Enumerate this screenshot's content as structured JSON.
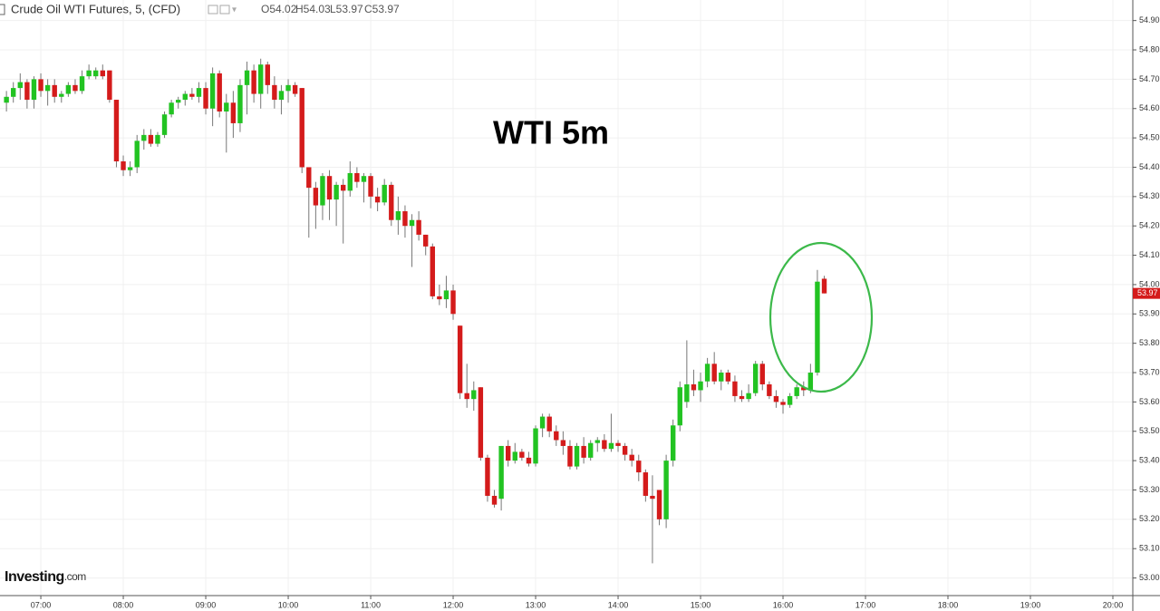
{
  "chart_data": {
    "type": "candlestick",
    "symbol": "Crude Oil WTI Futures, 5, (CFD)",
    "ohlc_legend": [
      "O54.02",
      "H54.03",
      "L53.97",
      "C53.97"
    ],
    "title": "WTI 5m",
    "logo": [
      "Investing",
      ".com"
    ],
    "up_color": "#22c322",
    "down_color": "#d41b1b",
    "grid": true,
    "last_price": 53.97,
    "xlim": [
      390.3,
      1214.5
    ],
    "ylim": [
      52.94,
      54.97
    ],
    "xticks": [
      {
        "value": 420,
        "label": "07:00"
      },
      {
        "value": 480,
        "label": "08:00"
      },
      {
        "value": 540,
        "label": "09:00"
      },
      {
        "value": 600,
        "label": "10:00"
      },
      {
        "value": 660,
        "label": "11:00"
      },
      {
        "value": 720,
        "label": "12:00"
      },
      {
        "value": 780,
        "label": "13:00"
      },
      {
        "value": 840,
        "label": "14:00"
      },
      {
        "value": 900,
        "label": "15:00"
      },
      {
        "value": 960,
        "label": "16:00"
      },
      {
        "value": 1020,
        "label": "17:00"
      },
      {
        "value": 1080,
        "label": "18:00"
      },
      {
        "value": 1140,
        "label": "19:00"
      },
      {
        "value": 1200,
        "label": "20:00"
      }
    ],
    "yticks": [
      {
        "value": 53.0,
        "label": "53.00"
      },
      {
        "value": 53.1,
        "label": "53.10"
      },
      {
        "value": 53.2,
        "label": "53.20"
      },
      {
        "value": 53.3,
        "label": "53.30"
      },
      {
        "value": 53.4,
        "label": "53.40"
      },
      {
        "value": 53.5,
        "label": "53.50"
      },
      {
        "value": 53.6,
        "label": "53.60"
      },
      {
        "value": 53.7,
        "label": "53.70"
      },
      {
        "value": 53.8,
        "label": "53.80"
      },
      {
        "value": 53.9,
        "label": "53.90"
      },
      {
        "value": 54.0,
        "label": "54.00"
      },
      {
        "value": 54.1,
        "label": "54.10"
      },
      {
        "value": 54.2,
        "label": "54.20"
      },
      {
        "value": 54.3,
        "label": "54.30"
      },
      {
        "value": 54.4,
        "label": "54.40"
      },
      {
        "value": 54.5,
        "label": "54.50"
      },
      {
        "value": 54.6,
        "label": "54.60"
      },
      {
        "value": 54.7,
        "label": "54.70"
      },
      {
        "value": 54.8,
        "label": "54.80"
      },
      {
        "value": 54.9,
        "label": "54.90"
      }
    ],
    "x": [
      395,
      400,
      405,
      410,
      415,
      420,
      425,
      430,
      435,
      440,
      445,
      450,
      455,
      460,
      465,
      470,
      475,
      480,
      485,
      490,
      495,
      500,
      505,
      510,
      515,
      520,
      525,
      530,
      535,
      540,
      545,
      550,
      555,
      560,
      565,
      570,
      575,
      580,
      585,
      590,
      595,
      600,
      605,
      610,
      615,
      620,
      625,
      630,
      635,
      640,
      645,
      650,
      655,
      660,
      665,
      670,
      675,
      680,
      685,
      690,
      695,
      700,
      705,
      710,
      715,
      720,
      725,
      730,
      735,
      740,
      745,
      750,
      755,
      760,
      765,
      770,
      775,
      780,
      785,
      790,
      795,
      800,
      805,
      810,
      815,
      820,
      825,
      830,
      835,
      840,
      845,
      850,
      855,
      860,
      865,
      870,
      875,
      880,
      885,
      890,
      895,
      900,
      905,
      910,
      915,
      920,
      925,
      930,
      935,
      940,
      945,
      950,
      955,
      960,
      965,
      970,
      975,
      980,
      985,
      990
    ],
    "ohlc": [
      [
        54.62,
        54.66,
        54.59,
        54.64
      ],
      [
        54.64,
        54.69,
        54.62,
        54.67
      ],
      [
        54.67,
        54.72,
        54.63,
        54.69
      ],
      [
        54.69,
        54.7,
        54.6,
        54.63
      ],
      [
        54.63,
        54.71,
        54.6,
        54.7
      ],
      [
        54.7,
        54.72,
        54.64,
        54.66
      ],
      [
        54.66,
        54.7,
        54.61,
        54.68
      ],
      [
        54.68,
        54.7,
        54.62,
        54.64
      ],
      [
        54.64,
        54.66,
        54.62,
        54.65
      ],
      [
        54.65,
        54.69,
        54.64,
        54.68
      ],
      [
        54.68,
        54.7,
        54.65,
        54.66
      ],
      [
        54.66,
        54.73,
        54.65,
        54.71
      ],
      [
        54.71,
        54.75,
        54.7,
        54.73
      ],
      [
        54.71,
        54.74,
        54.7,
        54.73
      ],
      [
        54.73,
        54.75,
        54.7,
        54.71
      ],
      [
        54.73,
        54.73,
        54.62,
        54.63
      ],
      [
        54.63,
        54.63,
        54.4,
        54.42
      ],
      [
        54.42,
        54.44,
        54.37,
        54.39
      ],
      [
        54.39,
        54.42,
        54.37,
        54.4
      ],
      [
        54.4,
        54.51,
        54.38,
        54.49
      ],
      [
        54.49,
        54.53,
        54.46,
        54.51
      ],
      [
        54.51,
        54.53,
        54.47,
        54.48
      ],
      [
        54.48,
        54.52,
        54.47,
        54.51
      ],
      [
        54.51,
        54.59,
        54.5,
        54.58
      ],
      [
        54.58,
        54.63,
        54.57,
        54.62
      ],
      [
        54.62,
        54.64,
        54.6,
        54.63
      ],
      [
        54.63,
        54.66,
        54.61,
        54.65
      ],
      [
        54.65,
        54.67,
        54.63,
        54.64
      ],
      [
        54.64,
        54.69,
        54.62,
        54.67
      ],
      [
        54.67,
        54.69,
        54.58,
        54.6
      ],
      [
        54.6,
        54.74,
        54.54,
        54.72
      ],
      [
        54.72,
        54.73,
        54.57,
        54.59
      ],
      [
        54.59,
        54.65,
        54.45,
        54.62
      ],
      [
        54.62,
        54.66,
        54.5,
        54.55
      ],
      [
        54.55,
        54.7,
        54.52,
        54.68
      ],
      [
        54.68,
        54.76,
        54.58,
        54.73
      ],
      [
        54.73,
        54.75,
        54.62,
        54.65
      ],
      [
        54.65,
        54.77,
        54.6,
        54.75
      ],
      [
        54.75,
        54.76,
        54.65,
        54.68
      ],
      [
        54.68,
        54.71,
        54.6,
        54.63
      ],
      [
        54.63,
        54.68,
        54.58,
        54.66
      ],
      [
        54.66,
        54.7,
        54.62,
        54.68
      ],
      [
        54.68,
        54.69,
        54.64,
        54.65
      ],
      [
        54.67,
        54.67,
        54.38,
        54.4
      ],
      [
        54.4,
        54.4,
        54.16,
        54.33
      ],
      [
        54.33,
        54.35,
        54.19,
        54.27
      ],
      [
        54.27,
        54.38,
        54.22,
        54.37
      ],
      [
        54.37,
        54.39,
        54.22,
        54.29
      ],
      [
        54.29,
        54.35,
        54.2,
        54.34
      ],
      [
        54.34,
        54.36,
        54.14,
        54.32
      ],
      [
        54.32,
        54.42,
        54.3,
        54.38
      ],
      [
        54.38,
        54.4,
        54.33,
        54.35
      ],
      [
        54.35,
        54.38,
        54.28,
        54.37
      ],
      [
        54.37,
        54.38,
        54.26,
        54.3
      ],
      [
        54.3,
        54.33,
        54.25,
        54.28
      ],
      [
        54.28,
        54.36,
        54.27,
        54.34
      ],
      [
        54.34,
        54.35,
        54.2,
        54.22
      ],
      [
        54.22,
        54.3,
        54.17,
        54.25
      ],
      [
        54.25,
        54.27,
        54.16,
        54.2
      ],
      [
        54.2,
        54.24,
        54.06,
        54.22
      ],
      [
        54.22,
        54.25,
        54.15,
        54.17
      ],
      [
        54.17,
        54.17,
        54.1,
        54.13
      ],
      [
        54.13,
        54.14,
        53.95,
        53.96
      ],
      [
        53.96,
        54.0,
        53.93,
        53.95
      ],
      [
        53.95,
        54.03,
        53.92,
        53.98
      ],
      [
        53.98,
        54.0,
        53.88,
        53.9
      ],
      [
        53.86,
        53.86,
        53.61,
        53.63
      ],
      [
        53.63,
        53.73,
        53.58,
        53.61
      ],
      [
        53.61,
        53.67,
        53.57,
        53.64
      ],
      [
        53.65,
        53.65,
        53.4,
        53.41
      ],
      [
        53.41,
        53.42,
        53.26,
        53.28
      ],
      [
        53.28,
        53.3,
        53.24,
        53.25
      ],
      [
        53.27,
        53.45,
        53.23,
        53.45
      ],
      [
        53.45,
        53.47,
        53.38,
        53.4
      ],
      [
        53.4,
        53.46,
        53.39,
        53.43
      ],
      [
        53.43,
        53.44,
        53.4,
        53.41
      ],
      [
        53.41,
        53.43,
        53.38,
        53.39
      ],
      [
        53.39,
        53.52,
        53.38,
        53.51
      ],
      [
        53.51,
        53.56,
        53.48,
        53.55
      ],
      [
        53.55,
        53.56,
        53.48,
        53.5
      ],
      [
        53.5,
        53.52,
        53.45,
        53.47
      ],
      [
        53.47,
        53.5,
        53.42,
        53.45
      ],
      [
        53.45,
        53.47,
        53.37,
        53.38
      ],
      [
        53.38,
        53.46,
        53.37,
        53.45
      ],
      [
        53.45,
        53.48,
        53.39,
        53.41
      ],
      [
        53.41,
        53.47,
        53.4,
        53.46
      ],
      [
        53.46,
        53.48,
        53.43,
        53.47
      ],
      [
        53.47,
        53.49,
        53.43,
        53.44
      ],
      [
        53.44,
        53.56,
        53.43,
        53.46
      ],
      [
        53.46,
        53.47,
        53.43,
        53.45
      ],
      [
        53.45,
        53.46,
        53.4,
        53.42
      ],
      [
        53.42,
        53.44,
        53.38,
        53.4
      ],
      [
        53.4,
        53.42,
        53.33,
        53.36
      ],
      [
        53.36,
        53.37,
        53.26,
        53.28
      ],
      [
        53.28,
        53.35,
        53.05,
        53.27
      ],
      [
        53.3,
        53.3,
        53.18,
        53.2
      ],
      [
        53.2,
        53.42,
        53.17,
        53.4
      ],
      [
        53.4,
        53.54,
        53.38,
        53.52
      ],
      [
        53.52,
        53.67,
        53.5,
        53.65
      ],
      [
        53.6,
        53.81,
        53.58,
        53.66
      ],
      [
        53.66,
        53.71,
        53.62,
        53.64
      ],
      [
        53.64,
        53.7,
        53.6,
        53.67
      ],
      [
        53.67,
        53.75,
        53.65,
        53.73
      ],
      [
        53.73,
        53.77,
        53.66,
        53.67
      ],
      [
        53.67,
        53.71,
        53.64,
        53.7
      ],
      [
        53.7,
        53.71,
        53.66,
        53.67
      ],
      [
        53.67,
        53.69,
        53.6,
        53.62
      ],
      [
        53.62,
        53.64,
        53.6,
        53.61
      ],
      [
        53.61,
        53.66,
        53.6,
        53.63
      ],
      [
        53.63,
        53.74,
        53.62,
        53.73
      ],
      [
        53.73,
        53.74,
        53.64,
        53.66
      ],
      [
        53.66,
        53.67,
        53.61,
        53.62
      ],
      [
        53.62,
        53.64,
        53.58,
        53.6
      ],
      [
        53.6,
        53.61,
        53.56,
        53.59
      ],
      [
        53.59,
        53.63,
        53.58,
        53.62
      ],
      [
        53.62,
        53.66,
        53.61,
        53.65
      ],
      [
        53.65,
        53.67,
        53.62,
        53.64
      ],
      [
        53.64,
        53.73,
        53.63,
        53.7
      ],
      [
        53.7,
        54.05,
        53.69,
        54.01
      ],
      [
        54.02,
        54.03,
        53.97,
        53.97
      ]
    ]
  }
}
